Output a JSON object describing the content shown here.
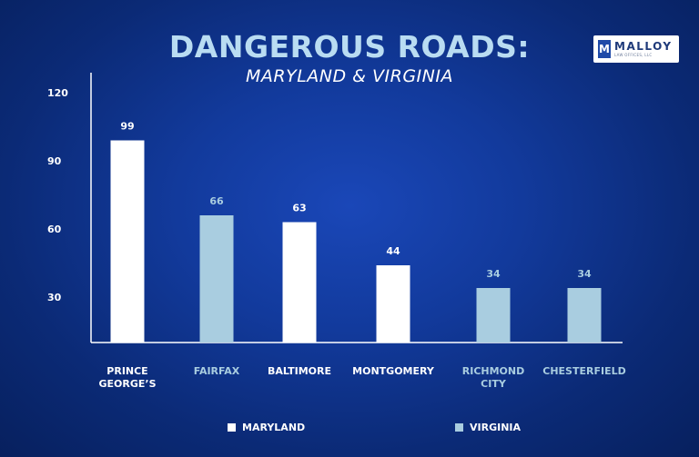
{
  "title": "DANGEROUS ROADS:",
  "subtitle": "MARYLAND & VIRGINIA",
  "logo": {
    "mark": "M",
    "name": "MALLOY",
    "sub": "LAW OFFICES, LLC"
  },
  "colors": {
    "maryland": "#ffffff",
    "virginia": "#a9cde0"
  },
  "legend": [
    {
      "label": "MARYLAND",
      "color": "#ffffff"
    },
    {
      "label": "VIRGINIA",
      "color": "#a9cde0"
    }
  ],
  "chart_data": {
    "type": "bar",
    "title": "DANGEROUS ROADS:",
    "subtitle": "MARYLAND & VIRGINIA",
    "categories": [
      "PRINCE\nGEORGE’S",
      "FAIRFAX",
      "BALTIMORE",
      "MONTGOMERY",
      "RICHMOND\nCITY",
      "CHESTERFIELD"
    ],
    "values": [
      99,
      66,
      63,
      44,
      34,
      34
    ],
    "groups": [
      "MARYLAND",
      "VIRGINIA",
      "MARYLAND",
      "MARYLAND",
      "VIRGINIA",
      "VIRGINIA"
    ],
    "y_ticks": [
      30,
      60,
      90,
      120
    ],
    "ylim": [
      10,
      120
    ],
    "grid": false,
    "legend_position": "bottom"
  }
}
